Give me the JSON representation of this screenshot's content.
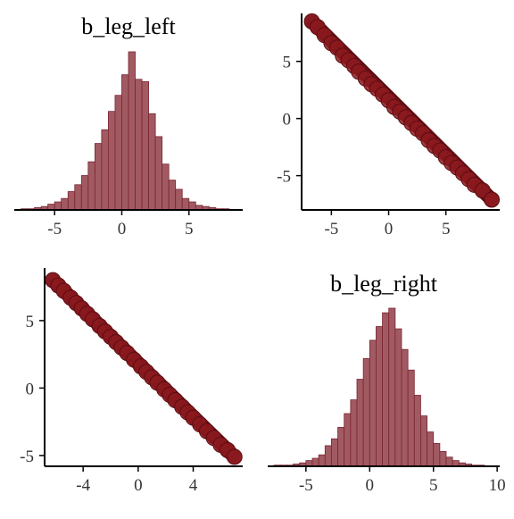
{
  "colors": {
    "hist_fill": "#a15a62",
    "hist_stroke": "#7a2530",
    "point_fill": "#8b1a1f",
    "point_stroke": "#5c0d12",
    "axis": "#000000"
  },
  "chart_data": [
    {
      "panel": "top-left",
      "type": "bar",
      "subtype": "histogram",
      "title": "b_leg_left",
      "x_ticks": [
        -5,
        0,
        5
      ],
      "xlim": [
        -8,
        9
      ],
      "bins": [
        {
          "start": -7.5,
          "end": -7.0,
          "count": 1
        },
        {
          "start": -7.0,
          "end": -6.5,
          "count": 1
        },
        {
          "start": -6.5,
          "end": -6.0,
          "count": 2
        },
        {
          "start": -6.0,
          "end": -5.5,
          "count": 3
        },
        {
          "start": -5.5,
          "end": -5.0,
          "count": 5
        },
        {
          "start": -5.0,
          "end": -4.5,
          "count": 7
        },
        {
          "start": -4.5,
          "end": -4.0,
          "count": 10
        },
        {
          "start": -4.0,
          "end": -3.5,
          "count": 16
        },
        {
          "start": -3.5,
          "end": -3.0,
          "count": 22
        },
        {
          "start": -3.0,
          "end": -2.5,
          "count": 30
        },
        {
          "start": -2.5,
          "end": -2.0,
          "count": 42
        },
        {
          "start": -2.0,
          "end": -1.5,
          "count": 58
        },
        {
          "start": -1.5,
          "end": -1.0,
          "count": 70
        },
        {
          "start": -1.0,
          "end": -0.5,
          "count": 86
        },
        {
          "start": -0.5,
          "end": 0.0,
          "count": 100
        },
        {
          "start": 0.0,
          "end": 0.5,
          "count": 118
        },
        {
          "start": 0.5,
          "end": 1.0,
          "count": 138
        },
        {
          "start": 1.0,
          "end": 1.5,
          "count": 114
        },
        {
          "start": 1.5,
          "end": 2.0,
          "count": 112
        },
        {
          "start": 2.0,
          "end": 2.5,
          "count": 84
        },
        {
          "start": 2.5,
          "end": 3.0,
          "count": 64
        },
        {
          "start": 3.0,
          "end": 3.5,
          "count": 40
        },
        {
          "start": 3.5,
          "end": 4.0,
          "count": 26
        },
        {
          "start": 4.0,
          "end": 4.5,
          "count": 18
        },
        {
          "start": 4.5,
          "end": 5.0,
          "count": 10
        },
        {
          "start": 5.0,
          "end": 5.5,
          "count": 7
        },
        {
          "start": 5.5,
          "end": 6.0,
          "count": 4
        },
        {
          "start": 6.0,
          "end": 6.5,
          "count": 3
        },
        {
          "start": 6.5,
          "end": 7.0,
          "count": 2
        },
        {
          "start": 7.0,
          "end": 7.5,
          "count": 1
        },
        {
          "start": 7.5,
          "end": 8.0,
          "count": 1
        }
      ]
    },
    {
      "panel": "top-right",
      "type": "scatter",
      "x_ticks": [
        -5,
        0,
        5
      ],
      "y_ticks": [
        -5,
        0,
        5
      ],
      "xlim": [
        -7.6,
        9.7
      ],
      "ylim": [
        -8,
        9.2
      ],
      "trend": {
        "x_start": -6.7,
        "y_start": 8.5,
        "x_end": 9.0,
        "y_end": -7.1
      },
      "points": [
        [
          -6.7,
          8.5
        ],
        [
          -6.2,
          8.0
        ],
        [
          -5.6,
          7.3
        ],
        [
          -5.0,
          6.6
        ],
        [
          -4.5,
          6.2
        ],
        [
          -4.0,
          5.5
        ],
        [
          -3.5,
          5.1
        ],
        [
          -3.0,
          4.6
        ],
        [
          -2.6,
          4.1
        ],
        [
          -2.0,
          3.5
        ],
        [
          -1.5,
          3.0
        ],
        [
          -1.0,
          2.6
        ],
        [
          -0.5,
          2.1
        ],
        [
          0.0,
          1.6
        ],
        [
          0.5,
          1.0
        ],
        [
          1.0,
          0.6
        ],
        [
          1.5,
          0.1
        ],
        [
          2.0,
          -0.4
        ],
        [
          2.5,
          -0.9
        ],
        [
          3.0,
          -1.3
        ],
        [
          3.5,
          -1.9
        ],
        [
          4.0,
          -2.4
        ],
        [
          4.5,
          -2.8
        ],
        [
          5.0,
          -3.4
        ],
        [
          5.5,
          -3.9
        ],
        [
          6.0,
          -4.3
        ],
        [
          6.5,
          -4.8
        ],
        [
          7.0,
          -5.3
        ],
        [
          7.5,
          -5.8
        ],
        [
          8.2,
          -6.3
        ],
        [
          9.0,
          -7.1
        ]
      ]
    },
    {
      "panel": "bottom-left",
      "type": "scatter",
      "x_ticks": [
        -4,
        0,
        4
      ],
      "y_ticks": [
        -5,
        0,
        5
      ],
      "xlim": [
        -6.8,
        7.6
      ],
      "ylim": [
        -5.8,
        8.9
      ],
      "trend": {
        "x_start": -6.2,
        "y_start": 8.0,
        "x_end": 7.0,
        "y_end": -5.1
      },
      "points": [
        [
          -6.2,
          8.0
        ],
        [
          -5.8,
          7.6
        ],
        [
          -5.4,
          7.2
        ],
        [
          -4.9,
          6.7
        ],
        [
          -4.5,
          6.3
        ],
        [
          -4.1,
          5.9
        ],
        [
          -3.7,
          5.5
        ],
        [
          -3.3,
          5.1
        ],
        [
          -2.8,
          4.6
        ],
        [
          -2.4,
          4.2
        ],
        [
          -2.0,
          3.8
        ],
        [
          -1.6,
          3.4
        ],
        [
          -1.2,
          3.0
        ],
        [
          -0.8,
          2.6
        ],
        [
          -0.3,
          2.1
        ],
        [
          0.2,
          1.6
        ],
        [
          0.6,
          1.2
        ],
        [
          1.0,
          0.8
        ],
        [
          1.4,
          0.4
        ],
        [
          1.9,
          -0.1
        ],
        [
          2.3,
          -0.5
        ],
        [
          2.7,
          -0.9
        ],
        [
          3.2,
          -1.4
        ],
        [
          3.6,
          -1.8
        ],
        [
          4.0,
          -2.2
        ],
        [
          4.5,
          -2.7
        ],
        [
          5.0,
          -3.2
        ],
        [
          5.5,
          -3.7
        ],
        [
          6.0,
          -4.2
        ],
        [
          6.5,
          -4.6
        ],
        [
          7.0,
          -5.1
        ]
      ]
    },
    {
      "panel": "bottom-right",
      "type": "bar",
      "subtype": "histogram",
      "title": "b_leg_right",
      "x_ticks": [
        -5,
        0,
        5,
        10
      ],
      "xlim": [
        -8,
        10.2
      ],
      "bins": [
        {
          "start": -7.5,
          "end": -7.0,
          "count": 1
        },
        {
          "start": -7.0,
          "end": -6.5,
          "count": 1
        },
        {
          "start": -6.5,
          "end": -6.0,
          "count": 1
        },
        {
          "start": -6.0,
          "end": -5.5,
          "count": 2
        },
        {
          "start": -5.5,
          "end": -5.0,
          "count": 3
        },
        {
          "start": -5.0,
          "end": -4.5,
          "count": 5
        },
        {
          "start": -4.5,
          "end": -4.0,
          "count": 7
        },
        {
          "start": -4.0,
          "end": -3.5,
          "count": 10
        },
        {
          "start": -3.5,
          "end": -3.0,
          "count": 18
        },
        {
          "start": -3.0,
          "end": -2.5,
          "count": 24
        },
        {
          "start": -2.5,
          "end": -2.0,
          "count": 34
        },
        {
          "start": -2.0,
          "end": -1.5,
          "count": 46
        },
        {
          "start": -1.5,
          "end": -1.0,
          "count": 58
        },
        {
          "start": -1.0,
          "end": -0.5,
          "count": 76
        },
        {
          "start": -0.5,
          "end": 0.0,
          "count": 94
        },
        {
          "start": 0.0,
          "end": 0.5,
          "count": 110
        },
        {
          "start": 0.5,
          "end": 1.0,
          "count": 122
        },
        {
          "start": 1.0,
          "end": 1.5,
          "count": 134
        },
        {
          "start": 1.5,
          "end": 2.0,
          "count": 138
        },
        {
          "start": 2.0,
          "end": 2.5,
          "count": 120
        },
        {
          "start": 2.5,
          "end": 3.0,
          "count": 102
        },
        {
          "start": 3.0,
          "end": 3.5,
          "count": 84
        },
        {
          "start": 3.5,
          "end": 4.0,
          "count": 62
        },
        {
          "start": 4.0,
          "end": 4.5,
          "count": 44
        },
        {
          "start": 4.5,
          "end": 5.0,
          "count": 30
        },
        {
          "start": 5.0,
          "end": 5.5,
          "count": 20
        },
        {
          "start": 5.5,
          "end": 6.0,
          "count": 13
        },
        {
          "start": 6.0,
          "end": 6.5,
          "count": 8
        },
        {
          "start": 6.5,
          "end": 7.0,
          "count": 5
        },
        {
          "start": 7.0,
          "end": 7.5,
          "count": 3
        },
        {
          "start": 7.5,
          "end": 8.0,
          "count": 2
        },
        {
          "start": 8.0,
          "end": 8.5,
          "count": 1
        },
        {
          "start": 8.5,
          "end": 9.0,
          "count": 1
        }
      ]
    }
  ]
}
